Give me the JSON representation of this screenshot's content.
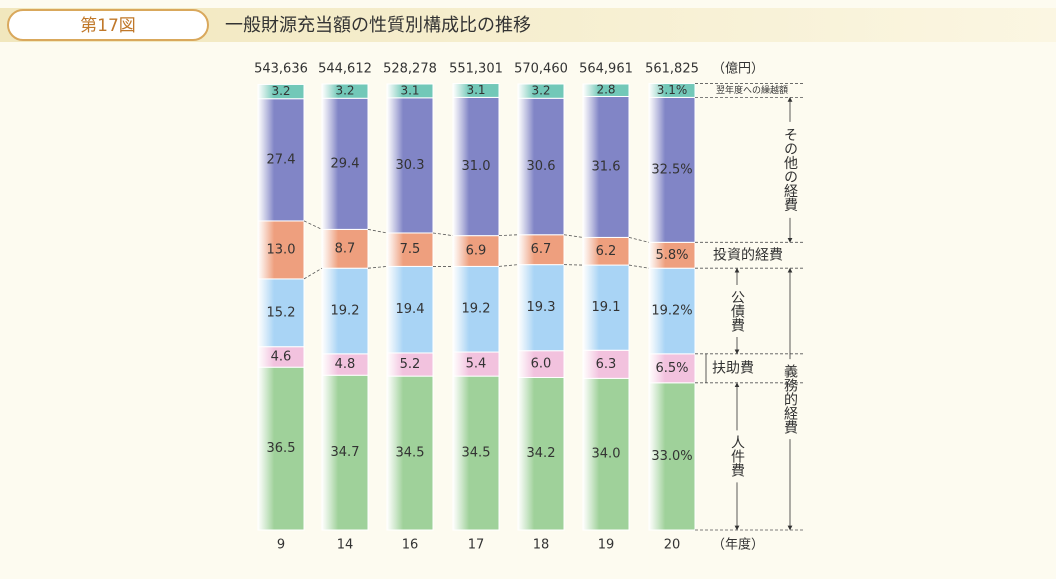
{
  "header": {
    "figure": "第17図",
    "title": "一般財源充当額の性質別構成比の推移"
  },
  "chart_data": {
    "type": "stacked_bar",
    "unit_label": "（億円）",
    "x_label": "（年度）",
    "categories": [
      "9",
      "14",
      "16",
      "17",
      "18",
      "19",
      "20"
    ],
    "totals": {
      "values": [
        543636,
        544612,
        528278,
        551301,
        570460,
        564961,
        561825
      ],
      "value_labels": [
        "543,636",
        "544,612",
        "528,278",
        "551,301",
        "570,460",
        "564,961",
        "561,825"
      ]
    },
    "ylim": [
      0,
      100
    ],
    "series": [
      {
        "name": "人件費",
        "color": "#9fd19a",
        "values": [
          36.5,
          34.7,
          34.5,
          34.5,
          34.2,
          34.0,
          33.0
        ],
        "value_labels": [
          "36.5",
          "34.7",
          "34.5",
          "34.5",
          "34.2",
          "34.0",
          "33.0%"
        ]
      },
      {
        "name": "扶助費",
        "color": "#f2c2de",
        "values": [
          4.6,
          4.8,
          5.2,
          5.4,
          6.0,
          6.3,
          6.5
        ],
        "value_labels": [
          "4.6",
          "4.8",
          "5.2",
          "5.4",
          "6.0",
          "6.3",
          "6.5%"
        ]
      },
      {
        "name": "公債費",
        "color": "#a9d4f5",
        "values": [
          15.2,
          19.2,
          19.4,
          19.2,
          19.3,
          19.1,
          19.2
        ],
        "value_labels": [
          "15.2",
          "19.2",
          "19.4",
          "19.2",
          "19.3",
          "19.1",
          "19.2%"
        ]
      },
      {
        "name": "投資的経費",
        "color": "#ee9f7e",
        "values": [
          13.0,
          8.7,
          7.5,
          6.9,
          6.7,
          6.2,
          5.8
        ],
        "value_labels": [
          "13.0",
          "8.7",
          "7.5",
          "6.9",
          "6.7",
          "6.2",
          "5.8%"
        ]
      },
      {
        "name": "その他の経費",
        "color": "#8185c6",
        "values": [
          27.4,
          29.4,
          30.3,
          31.0,
          30.6,
          31.6,
          32.5
        ],
        "value_labels": [
          "27.4",
          "29.4",
          "30.3",
          "31.0",
          "30.6",
          "31.6",
          "32.5%"
        ]
      },
      {
        "name": "翌年度への繰越額",
        "color": "#72c8b8",
        "values": [
          3.2,
          3.2,
          3.1,
          3.1,
          3.2,
          2.8,
          3.1
        ],
        "value_labels": [
          "3.2",
          "3.2",
          "3.1",
          "3.1",
          "3.2",
          "2.8",
          "3.1%"
        ]
      }
    ],
    "group": {
      "label": "義務的経費",
      "series_count": 3
    }
  }
}
